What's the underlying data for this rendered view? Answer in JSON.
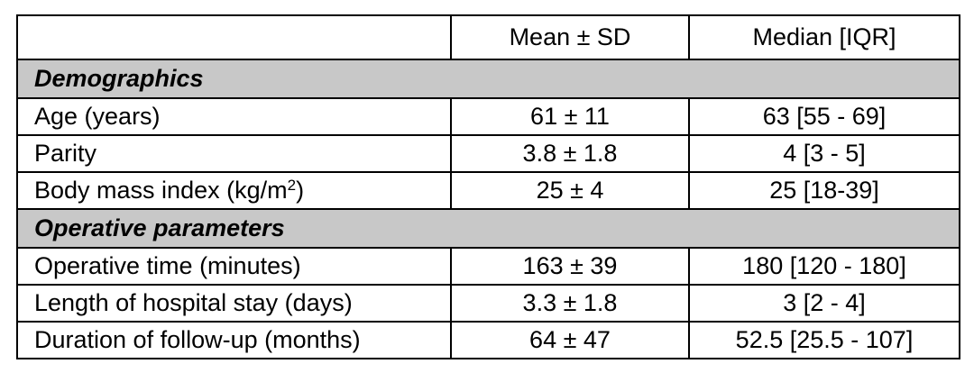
{
  "table": {
    "header": {
      "col1": "",
      "col2": "Mean ± SD",
      "col3": "Median [IQR]"
    },
    "sections": [
      {
        "title": "Demographics",
        "rows": [
          {
            "label": "Age (years)",
            "mean_sd": "61 ± 11",
            "median_iqr": "63 [55 - 69]"
          },
          {
            "label": "Parity",
            "mean_sd": "3.8 ± 1.8",
            "median_iqr": "4 [3 - 5]"
          },
          {
            "label_main": "Body mass index (kg/m",
            "label_sup": "2",
            "label_end": ")",
            "mean_sd": "25 ± 4",
            "median_iqr": "25 [18-39]"
          }
        ]
      },
      {
        "title": "Operative parameters",
        "rows": [
          {
            "label": "Operative time (minutes)",
            "mean_sd": "163 ± 39",
            "median_iqr": "180 [120 - 180]"
          },
          {
            "label": "Length of hospital stay (days)",
            "mean_sd": "3.3 ± 1.8",
            "median_iqr": "3 [2 - 4]"
          },
          {
            "label": "Duration of follow-up (months)",
            "mean_sd": "64 ± 47",
            "median_iqr": "52.5 [25.5 - 107]"
          }
        ]
      }
    ],
    "colors": {
      "section_background": "#c8c8c8",
      "border": "#000000",
      "text": "#000000"
    }
  }
}
